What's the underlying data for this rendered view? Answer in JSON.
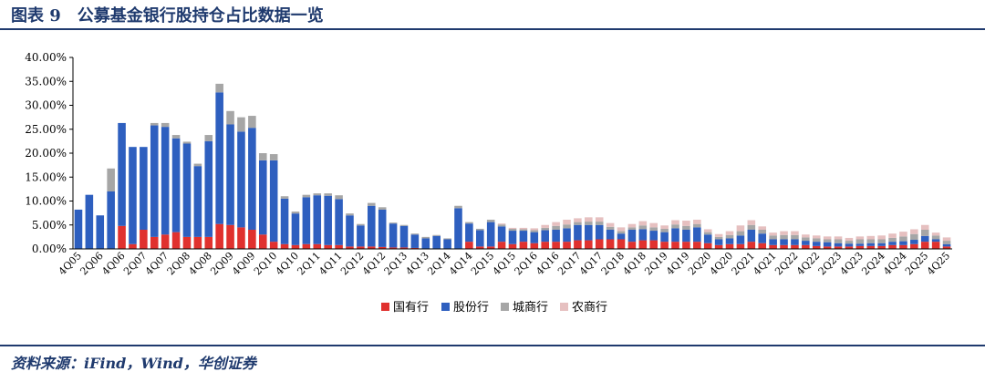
{
  "header": {
    "title": "图表 9　公募基金银行股持仓占比数据一览"
  },
  "footer": {
    "source": "资料来源：iFind，Wind，华创证券"
  },
  "colors": {
    "state": "#e0312e",
    "joint": "#2e5fbf",
    "city": "#a6a6a6",
    "rural": "#e6c0c0",
    "title": "#1f3a6e"
  },
  "chart_data": {
    "type": "bar",
    "stacked": true,
    "ylim": [
      0,
      40
    ],
    "yticks": [
      "0.00%",
      "5.00%",
      "10.00%",
      "15.00%",
      "20.00%",
      "25.00%",
      "30.00%",
      "35.00%",
      "40.00%"
    ],
    "legend_position": "bottom",
    "grid": false,
    "categories": [
      "4Q05",
      "1Q06",
      "2Q06",
      "3Q06",
      "4Q06",
      "1Q07",
      "2Q07",
      "3Q07",
      "4Q07",
      "1Q08",
      "2Q08",
      "3Q08",
      "4Q08",
      "1Q09",
      "2Q09",
      "3Q09",
      "4Q09",
      "1Q10",
      "2Q10",
      "3Q10",
      "4Q10",
      "1Q11",
      "2Q11",
      "3Q11",
      "4Q11",
      "1Q12",
      "2Q12",
      "3Q12",
      "4Q12",
      "1Q13",
      "2Q13",
      "3Q13",
      "4Q13",
      "1Q14",
      "2Q14",
      "3Q14",
      "4Q14",
      "1Q15",
      "2Q15",
      "3Q15",
      "4Q15",
      "1Q16",
      "2Q16",
      "3Q16",
      "4Q16",
      "1Q17",
      "2Q17",
      "3Q17",
      "4Q17",
      "1Q18",
      "2Q18",
      "3Q18",
      "4Q18",
      "1Q19",
      "2Q19",
      "3Q19",
      "4Q19",
      "1Q20",
      "2Q20",
      "3Q20",
      "4Q20",
      "1Q21",
      "2Q21",
      "3Q21",
      "4Q21",
      "1Q22",
      "2Q22",
      "3Q22",
      "4Q22",
      "1Q23",
      "2Q23",
      "3Q23",
      "4Q23",
      "1Q24",
      "2Q24",
      "3Q24",
      "4Q24",
      "1Q25",
      "2Q25",
      "3Q25",
      "4Q25"
    ],
    "x_labels_shown": [
      "4Q05",
      "2Q06",
      "4Q06",
      "2Q07",
      "4Q07",
      "2Q08",
      "4Q08",
      "2Q09",
      "4Q09",
      "2Q10",
      "4Q10",
      "2Q11",
      "4Q11",
      "2Q12",
      "4Q12",
      "2Q13",
      "4Q13",
      "2Q14",
      "4Q14",
      "2Q15",
      "4Q15",
      "2Q16",
      "4Q16",
      "2Q17",
      "4Q17",
      "2Q18",
      "4Q18",
      "2Q19",
      "4Q19",
      "2Q20",
      "4Q20",
      "2Q21",
      "4Q21",
      "2Q22",
      "4Q22",
      "2Q23",
      "4Q23",
      "2Q24",
      "4Q24",
      "2Q25",
      "4Q25"
    ],
    "series": [
      {
        "name": "国有行",
        "color": "#e0312e",
        "values": [
          0,
          0,
          0,
          0,
          4.8,
          1.0,
          4.0,
          2.5,
          3.0,
          3.5,
          2.5,
          2.5,
          2.5,
          5.2,
          5.0,
          4.5,
          4.0,
          3.0,
          1.5,
          1.0,
          0.8,
          1.0,
          1.0,
          0.8,
          0.8,
          0.5,
          0.5,
          0.5,
          0.4,
          0.3,
          0.3,
          0.2,
          0.1,
          0.1,
          0.1,
          0.1,
          1.5,
          0.5,
          0.5,
          1.5,
          1.0,
          1.5,
          1.2,
          1.5,
          1.5,
          1.5,
          1.8,
          1.8,
          2.0,
          2.0,
          2.0,
          1.5,
          1.8,
          1.8,
          1.5,
          1.5,
          1.5,
          1.5,
          1.2,
          0.8,
          1.0,
          1.0,
          1.5,
          1.2,
          0.8,
          0.8,
          0.8,
          0.8,
          0.6,
          0.5,
          0.5,
          0.5,
          0.6,
          0.6,
          0.6,
          0.8,
          0.8,
          1.0,
          1.5,
          1.5,
          0.5
        ]
      },
      {
        "name": "股份行",
        "color": "#2e5fbf",
        "values": [
          8.2,
          11.3,
          7.0,
          12.0,
          21.5,
          20.3,
          17.3,
          23.3,
          22.5,
          19.6,
          19.5,
          14.8,
          20.0,
          27.5,
          21.0,
          20.0,
          21.3,
          15.5,
          17.0,
          9.5,
          6.6,
          9.8,
          10.2,
          10.3,
          9.6,
          6.5,
          4.4,
          8.5,
          7.8,
          5.0,
          4.5,
          2.8,
          2.1,
          2.6,
          1.9,
          8.4,
          3.8,
          3.4,
          5.1,
          3.2,
          2.8,
          2.3,
          2.3,
          2.4,
          2.5,
          2.8,
          3.2,
          3.2,
          3.0,
          2.0,
          1.2,
          2.5,
          2.3,
          2.0,
          2.0,
          2.8,
          2.5,
          3.0,
          1.8,
          1.2,
          1.2,
          1.8,
          2.5,
          2.0,
          1.2,
          1.2,
          1.2,
          0.9,
          0.9,
          0.9,
          0.7,
          0.6,
          0.5,
          0.6,
          0.6,
          0.7,
          0.8,
          0.9,
          1.2,
          0.5,
          0.5
        ]
      },
      {
        "name": "城商行",
        "color": "#a6a6a6",
        "values": [
          0,
          0,
          0,
          4.8,
          0,
          0,
          0,
          0.5,
          0.8,
          0.7,
          0.4,
          0.5,
          1.3,
          1.8,
          2.8,
          3.0,
          2.5,
          1.5,
          1.3,
          0.5,
          0.4,
          0.5,
          0.4,
          0.5,
          0.8,
          0.4,
          0.3,
          0.6,
          0.5,
          0.2,
          0.2,
          0.2,
          0.3,
          0.2,
          0.2,
          0.5,
          0.3,
          0.3,
          0.5,
          0.4,
          0.4,
          0.3,
          0.4,
          0.5,
          0.8,
          0.8,
          0.6,
          0.7,
          0.7,
          0.6,
          0.5,
          0.5,
          0.8,
          0.7,
          0.7,
          0.8,
          0.8,
          0.7,
          0.5,
          0.5,
          0.7,
          0.9,
          1.0,
          0.8,
          0.8,
          0.9,
          0.9,
          0.7,
          0.7,
          0.6,
          0.8,
          0.6,
          0.9,
          0.8,
          0.8,
          0.8,
          1.0,
          1.2,
          1.3,
          0.8,
          0.7
        ]
      },
      {
        "name": "农商行",
        "color": "#e6c0c0",
        "values": [
          0,
          0,
          0,
          0,
          0,
          0,
          0,
          0,
          0,
          0,
          0,
          0,
          0,
          0,
          0,
          0,
          0,
          0,
          0,
          0,
          0,
          0,
          0,
          0,
          0,
          0,
          0,
          0,
          0,
          0,
          0,
          0,
          0,
          0,
          0,
          0,
          0,
          0,
          0,
          0.2,
          0.2,
          0.3,
          0.4,
          0.6,
          0.8,
          1.0,
          0.8,
          0.9,
          0.9,
          0.8,
          0.8,
          0.7,
          0.9,
          0.9,
          0.7,
          0.9,
          1.1,
          0.9,
          0.6,
          0.6,
          0.8,
          1.2,
          1.0,
          0.7,
          0.6,
          0.8,
          0.8,
          0.6,
          0.6,
          0.6,
          0.6,
          0.6,
          0.6,
          0.7,
          0.8,
          0.9,
          1.0,
          1.0,
          1.0,
          0.6,
          0.7
        ]
      }
    ]
  }
}
